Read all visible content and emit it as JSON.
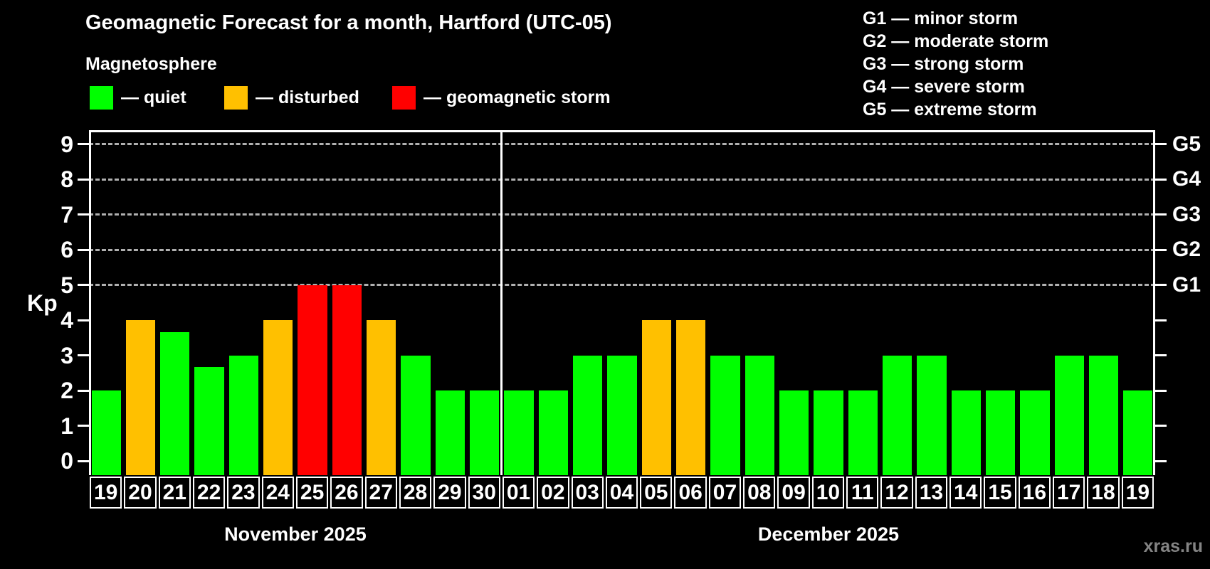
{
  "legend": {
    "heading": "Magnetosphere",
    "items": [
      {
        "key": "quiet",
        "label": "— quiet",
        "color": "#00ff00"
      },
      {
        "key": "disturbed",
        "label": "— disturbed",
        "color": "#ffc000"
      },
      {
        "key": "storm",
        "label": "— geomagnetic storm",
        "color": "#ff0000"
      }
    ]
  },
  "g_legend": {
    "items": [
      "G1 — minor storm",
      "G2 — moderate storm",
      "G3 — strong storm",
      "G4 — severe storm",
      "G5 — extreme storm"
    ]
  },
  "watermark": "xras.ru",
  "chart_data": {
    "type": "bar",
    "title": "Geomagnetic Forecast for a month, Hartford (UTC-05)",
    "ylabel": "Kp",
    "xlabel": "",
    "y_ticks": [
      0,
      1,
      2,
      3,
      4,
      5,
      6,
      7,
      8,
      9
    ],
    "ylim_visible": [
      0,
      9
    ],
    "ylim_drawn": [
      -0.4,
      9.4
    ],
    "grid": "horizontal dashed gridlines at Kp 5-9 only",
    "gridlines_at": [
      5,
      6,
      7,
      8,
      9
    ],
    "right_axis": [
      {
        "kp": 5,
        "label": "G1"
      },
      {
        "kp": 6,
        "label": "G2"
      },
      {
        "kp": 7,
        "label": "G3"
      },
      {
        "kp": 8,
        "label": "G4"
      },
      {
        "kp": 9,
        "label": "G5"
      }
    ],
    "colors": {
      "quiet": "#00ff00",
      "disturbed": "#ffc000",
      "storm": "#ff0000"
    },
    "months": [
      {
        "label": "November 2025",
        "days": [
          "19",
          "20",
          "21",
          "22",
          "23",
          "24",
          "25",
          "26",
          "27",
          "28",
          "29",
          "30"
        ],
        "values": [
          2,
          4,
          3.67,
          2.67,
          3,
          4,
          5,
          5,
          4,
          3,
          2,
          2
        ],
        "status": [
          "quiet",
          "disturbed",
          "quiet",
          "quiet",
          "quiet",
          "disturbed",
          "storm",
          "storm",
          "disturbed",
          "quiet",
          "quiet",
          "quiet"
        ]
      },
      {
        "label": "December 2025",
        "days": [
          "01",
          "02",
          "03",
          "04",
          "05",
          "06",
          "07",
          "08",
          "09",
          "10",
          "11",
          "12",
          "13",
          "14",
          "15",
          "16",
          "17",
          "18",
          "19"
        ],
        "values": [
          2,
          2,
          3,
          3,
          4,
          4,
          3,
          3,
          2,
          2,
          2,
          3,
          3,
          2,
          2,
          2,
          3,
          3,
          2
        ],
        "status": [
          "quiet",
          "quiet",
          "quiet",
          "quiet",
          "disturbed",
          "disturbed",
          "quiet",
          "quiet",
          "quiet",
          "quiet",
          "quiet",
          "quiet",
          "quiet",
          "quiet",
          "quiet",
          "quiet",
          "quiet",
          "quiet",
          "quiet"
        ]
      }
    ]
  }
}
